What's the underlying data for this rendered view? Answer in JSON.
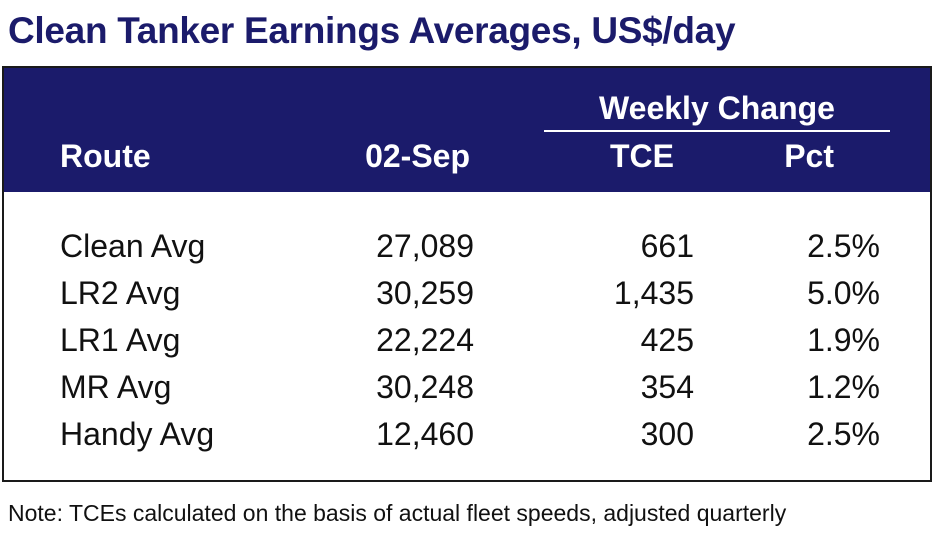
{
  "title": "Clean Tanker Earnings Averages, US$/day",
  "table": {
    "group_header": "Weekly Change",
    "columns": {
      "route": "Route",
      "date": "02-Sep",
      "tce": "TCE",
      "pct": "Pct"
    },
    "rows": [
      {
        "route": "Clean Avg",
        "date_value": "27,089",
        "tce_change": "661",
        "pct_change": "2.5%"
      },
      {
        "route": "LR2 Avg",
        "date_value": "30,259",
        "tce_change": "1,435",
        "pct_change": "5.0%"
      },
      {
        "route": "LR1 Avg",
        "date_value": "22,224",
        "tce_change": "425",
        "pct_change": "1.9%"
      },
      {
        "route": "MR Avg",
        "date_value": "30,248",
        "tce_change": "354",
        "pct_change": "1.2%"
      },
      {
        "route": "Handy Avg",
        "date_value": "12,460",
        "tce_change": "300",
        "pct_change": "2.5%"
      }
    ]
  },
  "note": "Note: TCEs calculated on the basis of actual fleet speeds, adjusted quarterly",
  "colors": {
    "header_bg": "#1b1b6b",
    "title": "#1b1b6b",
    "header_text": "#ffffff"
  }
}
